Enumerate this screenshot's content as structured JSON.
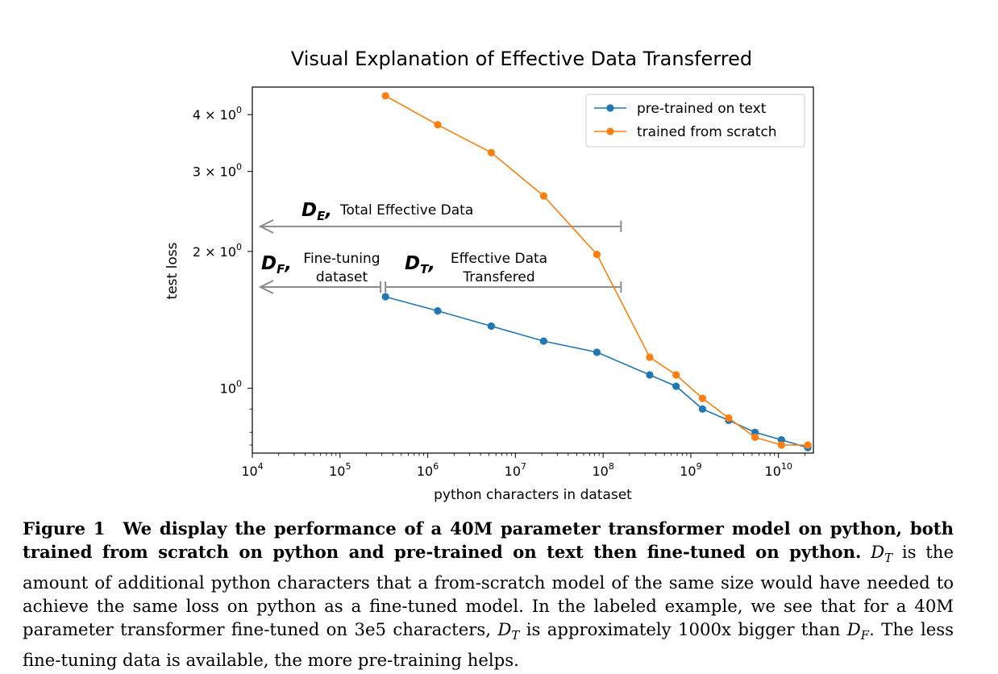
{
  "chart_data": {
    "type": "line",
    "title": "Visual Explanation of Effective Data Transferred",
    "xlabel": "python characters in dataset",
    "ylabel": "test loss",
    "xscale": "log",
    "yscale": "log",
    "xlim": [
      10000,
      25000000000
    ],
    "ylim": [
      0.72,
      4.6
    ],
    "xticks": [
      {
        "base": "10",
        "exp": "4",
        "value": 10000
      },
      {
        "base": "10",
        "exp": "5",
        "value": 100000
      },
      {
        "base": "10",
        "exp": "6",
        "value": 1000000
      },
      {
        "base": "10",
        "exp": "7",
        "value": 10000000
      },
      {
        "base": "10",
        "exp": "8",
        "value": 100000000
      },
      {
        "base": "10",
        "exp": "9",
        "value": 1000000000
      },
      {
        "base": "10",
        "exp": "10",
        "value": 10000000000
      }
    ],
    "yticks": [
      {
        "base": "10",
        "exp": "0",
        "value": 1
      },
      {
        "base": "2 × 10",
        "exp": "0",
        "value": 2
      },
      {
        "base": "3 × 10",
        "exp": "0",
        "value": 3
      },
      {
        "base": "4 × 10",
        "exp": "0",
        "value": 4
      }
    ],
    "legend_position": "top-right",
    "grid": false,
    "series": [
      {
        "name": "pre-trained on text",
        "color": "#1f77b4",
        "x": [
          330000,
          1300000,
          5300000,
          21000000,
          85000000,
          340000000,
          680000000,
          1360000000,
          2700000000,
          5400000000,
          10800000000,
          21600000000
        ],
        "y": [
          1.59,
          1.48,
          1.37,
          1.27,
          1.2,
          1.07,
          1.01,
          0.9,
          0.85,
          0.8,
          0.77,
          0.74
        ]
      },
      {
        "name": "trained from scratch",
        "color": "#ff7f0e",
        "x": [
          330000,
          1300000,
          5300000,
          21000000,
          85000000,
          340000000,
          680000000,
          1360000000,
          2700000000,
          5400000000,
          10800000000,
          21600000000
        ],
        "y": [
          4.4,
          3.8,
          3.3,
          2.65,
          1.97,
          1.17,
          1.07,
          0.95,
          0.86,
          0.78,
          0.75,
          0.75
        ]
      }
    ],
    "annotations": [
      {
        "id": "de",
        "symbol": "D",
        "sub": "E",
        "comma": ",",
        "text": "Total Effective Data",
        "x_start": 160000000,
        "y": 2.27,
        "arrow": "left"
      },
      {
        "id": "df",
        "symbol": "D",
        "sub": "F",
        "comma": ",",
        "text_line1": "Fine-tuning",
        "text_line2": "dataset",
        "x_start": 290000,
        "y": 1.67,
        "arrow": "left"
      },
      {
        "id": "dt",
        "symbol": "D",
        "sub": "T",
        "comma": ",",
        "text_line1": "Effective Data",
        "text_line2": "Transfered",
        "x_from": 330000,
        "x_to": 160000000,
        "y": 1.67
      }
    ]
  },
  "caption": {
    "label": "Figure 1",
    "bold_text": "We display the performance of a 40M parameter transformer model on python, both trained from scratch on python and pre-trained on text then fine-tuned on python.",
    "part1": " is the amount of additional python characters that a from-scratch model of the same size would have needed to achieve the same loss on python as a fine-tuned model. In the labeled example, we see that for a 40M parameter transformer fine-tuned on 3e5 characters, ",
    "part2": " is approximately 1000x bigger than ",
    "part3": ". The less fine-tuning data is available, the more pre-training helps.",
    "math_d": "D",
    "math_t": "T",
    "math_f": "F"
  }
}
